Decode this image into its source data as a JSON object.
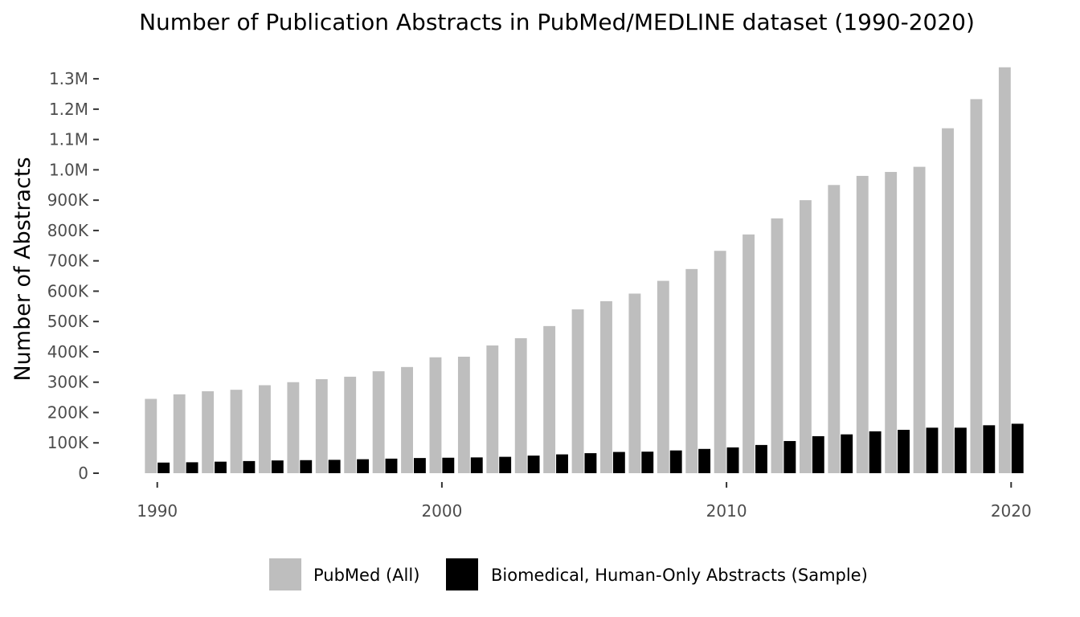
{
  "chart_data": {
    "type": "bar",
    "title": "Number of Publication Abstracts in PubMed/MEDLINE dataset (1990-2020)",
    "xlabel": "",
    "ylabel": "Number of Abstracts",
    "x": [
      1990,
      1991,
      1992,
      1993,
      1994,
      1995,
      1996,
      1997,
      1998,
      1999,
      2000,
      2001,
      2002,
      2003,
      2004,
      2005,
      2006,
      2007,
      2008,
      2009,
      2010,
      2011,
      2012,
      2013,
      2014,
      2015,
      2016,
      2017,
      2018,
      2019,
      2020
    ],
    "xticks": [
      1990,
      2000,
      2010,
      2020
    ],
    "xtick_labels": [
      "1990",
      "2000",
      "2010",
      "2020"
    ],
    "yticks": [
      0,
      100000,
      200000,
      300000,
      400000,
      500000,
      600000,
      700000,
      800000,
      900000,
      1000000,
      1100000,
      1200000,
      1300000
    ],
    "ytick_labels": [
      "0",
      "100K",
      "200K",
      "300K",
      "400K",
      "500K",
      "600K",
      "700K",
      "800K",
      "900K",
      "1.0M",
      "1.1M",
      "1.2M",
      "1.3M"
    ],
    "ylim": [
      0,
      1340000
    ],
    "xlim": [
      1989.5,
      2020.5
    ],
    "grid": false,
    "legend_position": "bottom",
    "series": [
      {
        "name": "PubMed (All)",
        "color": "#bebebe",
        "values": [
          245000,
          260000,
          270000,
          275000,
          290000,
          300000,
          310000,
          318000,
          336000,
          350000,
          382000,
          384000,
          421000,
          445000,
          485000,
          540000,
          567000,
          592000,
          634000,
          673000,
          733000,
          787000,
          840000,
          900000,
          950000,
          980000,
          993000,
          1010000,
          1137000,
          1233000,
          1338000
        ]
      },
      {
        "name": "Biomedical, Human-Only Abstracts (Sample)",
        "color": "#000000",
        "values": [
          35000,
          36000,
          38000,
          40000,
          42000,
          43000,
          44000,
          46000,
          48000,
          50000,
          51000,
          52000,
          54000,
          58000,
          62000,
          66000,
          70000,
          71000,
          75000,
          80000,
          85000,
          93000,
          106000,
          122000,
          128000,
          138000,
          143000,
          150000,
          150000,
          158000,
          163000
        ]
      }
    ]
  }
}
